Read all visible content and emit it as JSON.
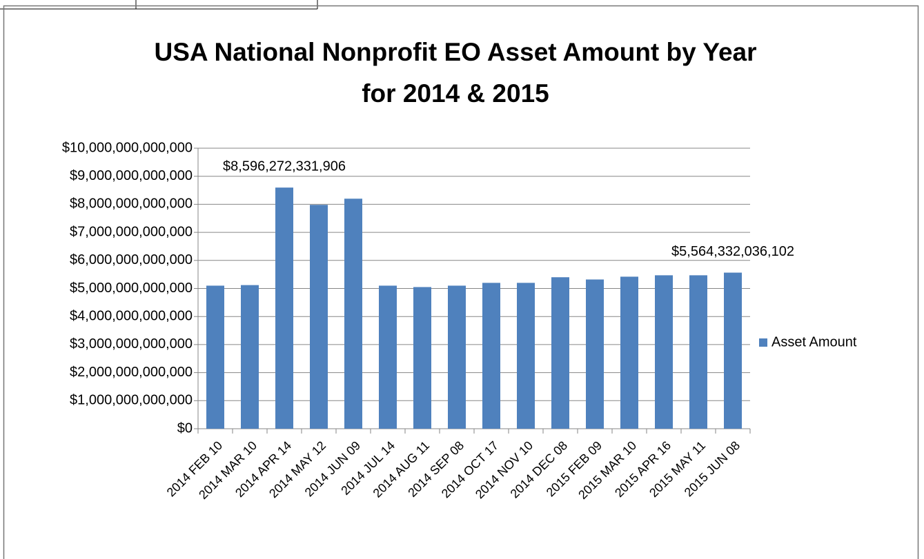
{
  "chart_data": {
    "type": "bar",
    "title": [
      "USA National Nonprofit EO Asset Amount by Year",
      "for 2014 & 2015"
    ],
    "categories": [
      "2014 FEB 10",
      "2014 MAR 10",
      "2014 APR 14",
      "2014 MAY 12",
      "2014 JUN 09",
      "2014 JUL 14",
      "2014 AUG 11",
      "2014 SEP 08",
      "2014 OCT 17",
      "2014 NOV 10",
      "2014 DEC 08",
      "2015 FEB 09",
      "2015 MAR 10",
      "2015 APR 16",
      "2015 MAY 11",
      "2015 JUN 08"
    ],
    "series": [
      {
        "name": "Asset Amount",
        "color": "#4f81bd",
        "values": [
          5100000000000,
          5120000000000,
          8596272331906,
          7980000000000,
          8200000000000,
          5100000000000,
          5050000000000,
          5100000000000,
          5200000000000,
          5200000000000,
          5400000000000,
          5320000000000,
          5420000000000,
          5470000000000,
          5470000000000,
          5564332036102
        ],
        "value_labels": [
          null,
          null,
          "$8,596,272,331,906",
          null,
          null,
          null,
          null,
          null,
          null,
          null,
          null,
          null,
          null,
          null,
          null,
          "$5,564,332,036,102"
        ]
      }
    ],
    "ylim": [
      0,
      10000000000000
    ],
    "yticks": [
      {
        "value": 0,
        "label": "$0"
      },
      {
        "value": 1000000000000,
        "label": "$1,000,000,000,000"
      },
      {
        "value": 2000000000000,
        "label": "$2,000,000,000,000"
      },
      {
        "value": 3000000000000,
        "label": "$3,000,000,000,000"
      },
      {
        "value": 4000000000000,
        "label": "$4,000,000,000,000"
      },
      {
        "value": 5000000000000,
        "label": "$5,000,000,000,000"
      },
      {
        "value": 6000000000000,
        "label": "$6,000,000,000,000"
      },
      {
        "value": 7000000000000,
        "label": "$7,000,000,000,000"
      },
      {
        "value": 8000000000000,
        "label": "$8,000,000,000,000"
      },
      {
        "value": 9000000000000,
        "label": "$9,000,000,000,000"
      },
      {
        "value": 10000000000000,
        "label": "$10,000,000,000,000"
      }
    ],
    "grid": true,
    "legend": "right"
  }
}
